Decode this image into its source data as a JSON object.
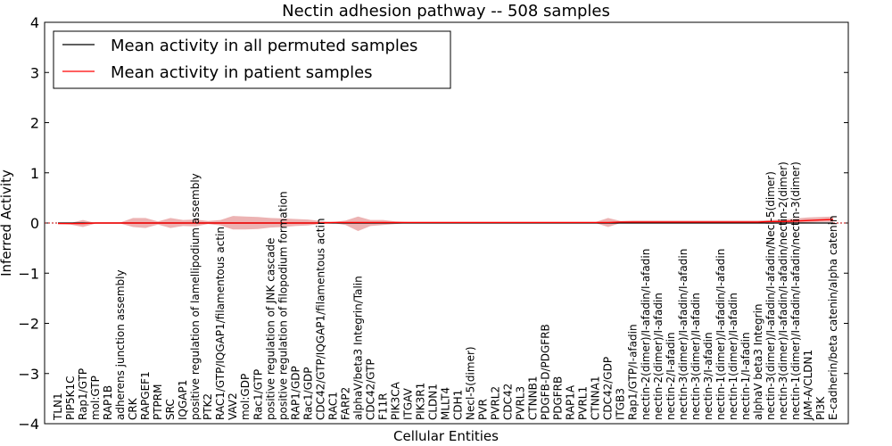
{
  "chart_data": {
    "type": "line",
    "title": "Nectin adhesion pathway -- 508 samples",
    "xlabel": "Cellular Entities",
    "ylabel": "Inferred Activity",
    "ylim": [
      -4,
      4
    ],
    "yticks": [
      -4,
      -3,
      -2,
      -1,
      0,
      1,
      2,
      3,
      4
    ],
    "legend_position": "top-left",
    "categories": [
      "TLN1",
      "PIP5K1C",
      "Rap1/GTP",
      "mol:GTP",
      "RAP1B",
      "adherens junction assembly",
      "CRK",
      "RAPGEF1",
      "PTPRM",
      "SRC",
      "IQGAP1",
      "positive regulation of lamellipodium assembly",
      "PTK2",
      "RAC1/GTP/IQGAP1/filamentous actin",
      "VAV2",
      "mol:GDP",
      "Rac1/GTP",
      "positive regulation of JNK cascade",
      "positive regulation of filopodium formation",
      "RAP1/GDP",
      "Rac1/GDP",
      "CDC42/GTP/IQGAP1/filamentous actin",
      "RAC1",
      "FARP2",
      "alphaV/beta3 Integrin/Talin",
      "CDC42/GTP",
      "F11R",
      "PIK3CA",
      "ITGAV",
      "PIK3R1",
      "CLDN1",
      "MLLT4",
      "CDH1",
      "Necl-5(dimer)",
      "PVR",
      "PVRL2",
      "CDC42",
      "PVRL3",
      "CTNNB1",
      "PDGFB-D/PDGFRB",
      "PDGFRB",
      "RAP1A",
      "PVRL1",
      "CTNNA1",
      "CDC42/GDP",
      "ITGB3",
      "Rap1/GTP/I-afadin",
      "nectin-2(dimer)/I-afadin/I-afadin",
      "nectin-2(dimer)/I-afadin",
      "nectin-2/I-afadin",
      "nectin-3(dimer)/I-afadin/I-afadin",
      "nectin-3(dimer)/I-afadin",
      "nectin-3/I-afadin",
      "nectin-1(dimer)/I-afadin/I-afadin",
      "nectin-1(dimer)/I-afadin",
      "nectin-1/I-afadin",
      "alphaV beta3 Integrin",
      "nectin-3(dimer)/I-afadin/I-afadin/Necl-5(dimer)",
      "nectin-3(dimer)/I-afadin/I-afadin/nectin-2(dimer)",
      "nectin-1(dimer)/I-afadin/I-afadin/nectin-3(dimer)",
      "JAM-A/CLDN1",
      "PI3K",
      "E-cadherin/beta catenin/alpha catenin"
    ],
    "series": [
      {
        "name": "Mean activity in all permuted samples",
        "color": "#000000",
        "values": [
          0,
          0,
          0,
          0,
          0,
          0,
          0,
          0,
          0,
          0,
          0,
          0,
          0,
          0,
          0,
          0,
          0,
          0,
          0,
          0,
          0,
          0,
          0,
          0,
          0,
          0,
          0,
          0,
          0,
          0,
          0,
          0,
          0,
          0,
          0,
          0,
          0,
          0,
          0,
          0,
          0,
          0,
          0,
          0,
          0,
          0,
          0,
          0,
          0,
          0,
          0,
          0,
          0,
          0,
          0,
          0,
          0,
          0,
          0,
          0,
          0,
          0,
          0
        ]
      },
      {
        "name": "Mean activity in patient samples",
        "color": "#ff0000",
        "values": [
          -0.01,
          -0.01,
          -0.01,
          0,
          0,
          0,
          0,
          0,
          0,
          0,
          0,
          0,
          0,
          0,
          0,
          0,
          0,
          0,
          0,
          0,
          0,
          0,
          0.01,
          0.01,
          0.01,
          0.01,
          0.01,
          0.01,
          0.01,
          0.01,
          0.01,
          0.01,
          0.01,
          0.01,
          0.01,
          0.01,
          0.01,
          0.01,
          0.01,
          0.01,
          0.01,
          0.01,
          0.01,
          0.01,
          0.01,
          0.02,
          0.02,
          0.02,
          0.02,
          0.02,
          0.02,
          0.02,
          0.02,
          0.02,
          0.02,
          0.02,
          0.02,
          0.03,
          0.03,
          0.04,
          0.05,
          0.06,
          0.07
        ],
        "band_lower": [
          -0.02,
          -0.03,
          -0.08,
          -0.01,
          -0.01,
          -0.01,
          -0.08,
          -0.1,
          -0.03,
          -0.1,
          -0.06,
          -0.07,
          -0.02,
          -0.05,
          -0.13,
          -0.13,
          -0.12,
          -0.09,
          -0.08,
          -0.06,
          -0.05,
          -0.02,
          0,
          -0.04,
          -0.16,
          -0.06,
          -0.04,
          -0.02,
          0,
          0,
          0,
          0,
          0,
          0,
          0,
          0,
          0,
          0,
          0,
          0,
          0,
          0,
          0,
          0,
          -0.08,
          0,
          0,
          0,
          0,
          0,
          0,
          0,
          0,
          0,
          0,
          0,
          0,
          0,
          0,
          0,
          0.01,
          0.02,
          0.02
        ],
        "band_upper": [
          0,
          0,
          0.06,
          0,
          0,
          0.01,
          0.1,
          0.1,
          0.03,
          0.1,
          0.06,
          0.07,
          0.04,
          0.06,
          0.14,
          0.13,
          0.12,
          0.1,
          0.09,
          0.08,
          0.07,
          0.04,
          0.02,
          0.05,
          0.13,
          0.06,
          0.06,
          0.03,
          0.02,
          0.02,
          0.02,
          0.02,
          0.02,
          0.02,
          0.02,
          0.02,
          0.02,
          0.02,
          0.02,
          0.02,
          0.02,
          0.02,
          0.02,
          0.02,
          0.1,
          0.04,
          0.05,
          0.05,
          0.05,
          0.05,
          0.05,
          0.05,
          0.05,
          0.05,
          0.05,
          0.05,
          0.05,
          0.06,
          0.07,
          0.09,
          0.11,
          0.12,
          0.13
        ]
      }
    ]
  }
}
